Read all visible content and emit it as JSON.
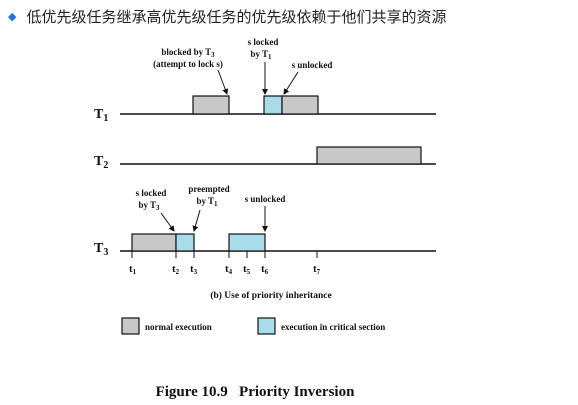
{
  "heading": {
    "bullet_icon": "diamond-bullet-icon",
    "text": "低优先级任务继承高优先级任务的优先级依赖于他们共享的资源"
  },
  "tasks": [
    {
      "name": "T",
      "sub": "1"
    },
    {
      "name": "T",
      "sub": "2"
    },
    {
      "name": "T",
      "sub": "3"
    }
  ],
  "annotations": {
    "t1_blocked_line1": "blocked by T",
    "t1_blocked_sub": "3",
    "t1_blocked_line2": "(attempt to lock s)",
    "t1_slocked_line1": "s locked",
    "t1_slocked_line2": "by T",
    "t1_slocked_sub": "1",
    "t1_sunlocked": "s unlocked",
    "t3_slocked_line1": "s locked",
    "t3_slocked_line2": "by T",
    "t3_slocked_sub": "3",
    "t3_preempted_line1": "preempted",
    "t3_preempted_line2": "by T",
    "t3_preempted_sub": "1",
    "t3_sunlocked": "s unlocked"
  },
  "time_marks": [
    {
      "name": "t",
      "sub": "1"
    },
    {
      "name": "t",
      "sub": "2"
    },
    {
      "name": "t",
      "sub": "3"
    },
    {
      "name": "t",
      "sub": "4"
    },
    {
      "name": "t",
      "sub": "5"
    },
    {
      "name": "t",
      "sub": "6"
    },
    {
      "name": "t",
      "sub": "7"
    }
  ],
  "subcaption": "(b) Use of priority inheritance",
  "legend": [
    {
      "label": "normal execution",
      "color": "#c8c8c8"
    },
    {
      "label": "execution in critical section",
      "color": "#a9dbea"
    }
  ],
  "figure_caption": "Figure 10.9   Priority Inversion",
  "colors": {
    "normal": "#c8c8c8",
    "critical": "#a9dbea",
    "line": "#111111",
    "bullet": "#2a6fd6"
  }
}
